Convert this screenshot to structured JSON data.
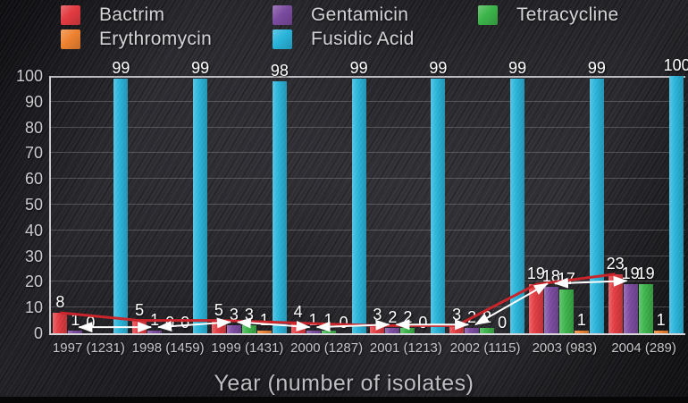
{
  "legend": {
    "items": [
      {
        "label": "Bactrim",
        "color": "#e23b41"
      },
      {
        "label": "Erythromycin",
        "color": "#ef8331"
      },
      {
        "label": "Gentamicin",
        "color": "#7b4ba0"
      },
      {
        "label": "Fusidic Acid",
        "color": "#29b4da"
      },
      {
        "label": "Tetracycline",
        "color": "#3cb44a"
      }
    ]
  },
  "axes": {
    "y_ticks": [
      0,
      10,
      20,
      30,
      40,
      50,
      60,
      70,
      80,
      90,
      100
    ]
  },
  "chart_data": {
    "type": "bar",
    "title": "",
    "xlabel": "Year (number of isolates)",
    "ylabel": "",
    "ylim": [
      0,
      100
    ],
    "grid": true,
    "legend_position": "top",
    "categories": [
      "1997 (1231)",
      "1998 (1459)",
      "1999 (1431)",
      "2000 (1287)",
      "2001 (1213)",
      "2002 (1115)",
      "2003 (983)",
      "2004 (289)"
    ],
    "years": [
      1997,
      1998,
      1999,
      2000,
      2001,
      2002,
      2003,
      2004
    ],
    "isolates": [
      1231,
      1459,
      1431,
      1287,
      1213,
      1115,
      983,
      289
    ],
    "bar_order": [
      "Bactrim",
      "Gentamicin",
      "Tetracycline",
      "Erythromycin",
      "Fusidic Acid"
    ],
    "series": [
      {
        "name": "Bactrim",
        "color": "#e23b41",
        "values": [
          8,
          5,
          5,
          4,
          3,
          3,
          19,
          23
        ]
      },
      {
        "name": "Gentamicin",
        "color": "#7b4ba0",
        "values": [
          1,
          1,
          3,
          1,
          2,
          2,
          18,
          19
        ]
      },
      {
        "name": "Tetracycline",
        "color": "#3cb44a",
        "values": [
          0,
          0,
          3,
          1,
          2,
          2,
          17,
          19
        ]
      },
      {
        "name": "Erythromycin",
        "color": "#ef8331",
        "values": [
          null,
          0,
          1,
          0,
          0,
          0,
          1,
          1
        ]
      },
      {
        "name": "Fusidic Acid",
        "color": "#29b4da",
        "values": [
          99,
          99,
          98,
          99,
          99,
          99,
          99,
          100
        ]
      }
    ],
    "overlays": [
      {
        "type": "line",
        "follows": "Bactrim",
        "color": "#c9252b",
        "arrowheads": false
      },
      {
        "type": "arrow-line",
        "follows": "Gentamicin",
        "color": "#ffffff",
        "arrowheads": true
      }
    ]
  }
}
